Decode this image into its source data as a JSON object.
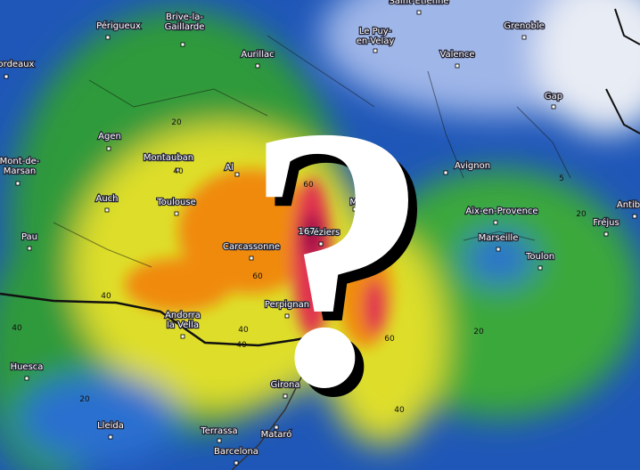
{
  "map": {
    "cities": [
      {
        "lines": [
          "Saint-Etienne"
        ]
      },
      {
        "lines": [
          "Périgueux"
        ]
      },
      {
        "lines": [
          "Brive-la-",
          "Gaillarde"
        ]
      },
      {
        "lines": [
          "Le Puy-",
          "en-Velay"
        ]
      },
      {
        "lines": [
          "Grenoble"
        ]
      },
      {
        "lines": [
          "ordeaux"
        ]
      },
      {
        "lines": [
          "Aurillac"
        ]
      },
      {
        "lines": [
          "Valence"
        ]
      },
      {
        "lines": [
          "Gap"
        ]
      },
      {
        "lines": [
          "Agen"
        ]
      },
      {
        "lines": [
          "Montauban"
        ]
      },
      {
        "lines": [
          "Al"
        ]
      },
      {
        "lines": [
          "Avignon"
        ]
      },
      {
        "lines": [
          "Mont-de-",
          "Marsan"
        ]
      },
      {
        "lines": [
          "Auch"
        ]
      },
      {
        "lines": [
          "Toulouse"
        ]
      },
      {
        "lines": [
          "Montp"
        ]
      },
      {
        "lines": [
          "Aix-en-Provence"
        ]
      },
      {
        "lines": [
          "Antib"
        ]
      },
      {
        "lines": [
          "Fréjus"
        ]
      },
      {
        "lines": [
          "Marseille"
        ]
      },
      {
        "lines": [
          "Pau"
        ]
      },
      {
        "lines": [
          "Carcassonne"
        ]
      },
      {
        "lines": [
          "Béziers"
        ]
      },
      {
        "lines": [
          "Toulon"
        ]
      },
      {
        "lines": [
          "Perpignan"
        ]
      },
      {
        "lines": [
          "Andorra",
          "la Vella"
        ]
      },
      {
        "lines": [
          "Huesca"
        ]
      },
      {
        "lines": [
          "Girona"
        ]
      },
      {
        "lines": [
          "Lleida"
        ]
      },
      {
        "lines": [
          "Terrassa"
        ]
      },
      {
        "lines": [
          "Mataró"
        ]
      },
      {
        "lines": [
          "Barcelona"
        ]
      }
    ],
    "contour_labels": [
      "20",
      "40",
      "60",
      "167",
      "60",
      "40",
      "40",
      "40",
      "20",
      "60",
      "40",
      "20",
      "20",
      "5",
      "40"
    ],
    "overlay_symbol": "?"
  }
}
